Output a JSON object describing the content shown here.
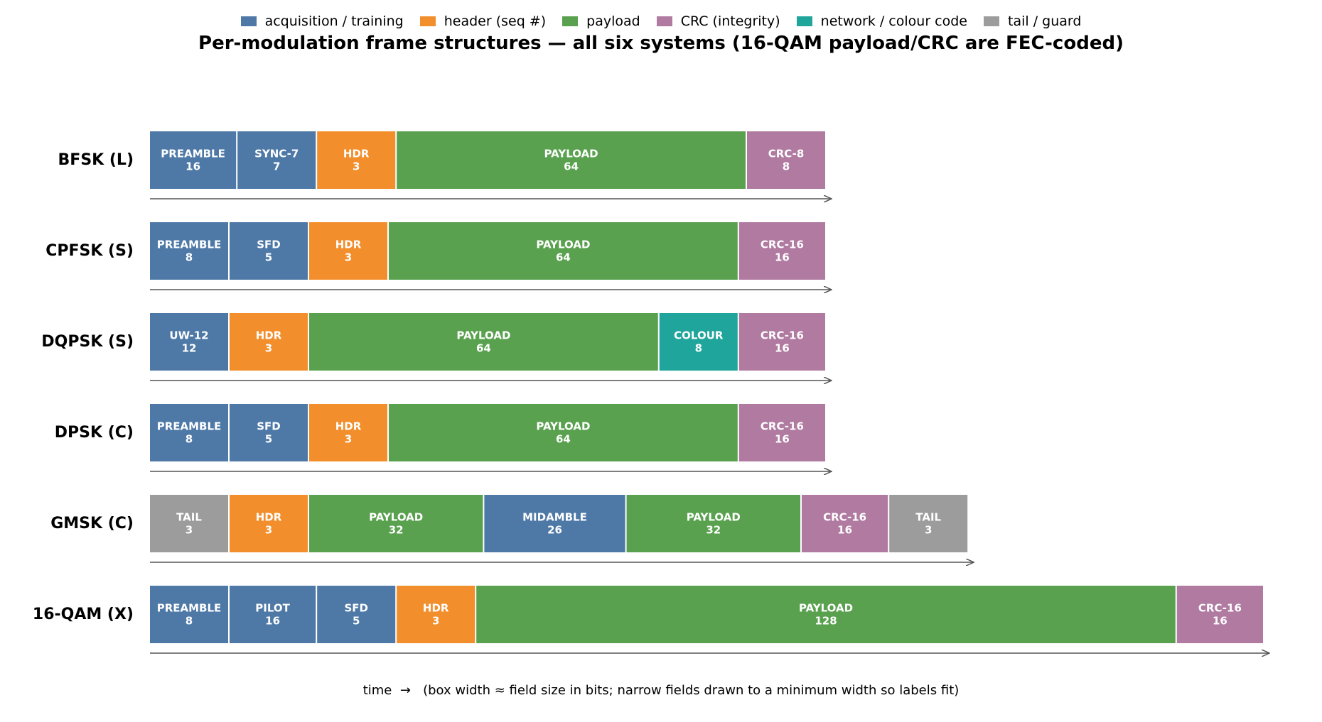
{
  "title": "Per-modulation frame structures — all six systems (16-QAM payload/CRC are FEC-coded)",
  "caption": "time  →   (box width ≈ field size in bits; narrow fields drawn to a minimum width so labels fit)",
  "legend": [
    {
      "label": "acquisition / training",
      "color": "#4e79a7"
    },
    {
      "label": "header (seq #)",
      "color": "#f28e2b"
    },
    {
      "label": "payload",
      "color": "#59a14f"
    },
    {
      "label": "CRC (integrity)",
      "color": "#b07aa1"
    },
    {
      "label": "network / colour code",
      "color": "#1fa59b"
    },
    {
      "label": "tail / guard",
      "color": "#9c9c9c"
    }
  ],
  "category_colors": {
    "acq": "#4e79a7",
    "hdr": "#f28e2b",
    "payload": "#59a14f",
    "crc": "#b07aa1",
    "net": "#1fa59b",
    "tail": "#9c9c9c"
  },
  "chart_data": {
    "type": "diagram",
    "title": "Per-modulation frame structures — all six systems (16-QAM payload/CRC are FEC-coded)",
    "systems": [
      {
        "name": "BFSK (L)",
        "fields": [
          {
            "label": "PREAMBLE",
            "bits": 16,
            "category": "acq"
          },
          {
            "label": "SYNC-7",
            "bits": 7,
            "category": "acq"
          },
          {
            "label": "HDR",
            "bits": 3,
            "category": "hdr"
          },
          {
            "label": "PAYLOAD",
            "bits": 64,
            "category": "payload"
          },
          {
            "label": "CRC-8",
            "bits": 8,
            "category": "crc"
          }
        ]
      },
      {
        "name": "CPFSK (S)",
        "fields": [
          {
            "label": "PREAMBLE",
            "bits": 8,
            "category": "acq"
          },
          {
            "label": "SFD",
            "bits": 5,
            "category": "acq"
          },
          {
            "label": "HDR",
            "bits": 3,
            "category": "hdr"
          },
          {
            "label": "PAYLOAD",
            "bits": 64,
            "category": "payload"
          },
          {
            "label": "CRC-16",
            "bits": 16,
            "category": "crc"
          }
        ]
      },
      {
        "name": "DQPSK (S)",
        "fields": [
          {
            "label": "UW-12",
            "bits": 12,
            "category": "acq"
          },
          {
            "label": "HDR",
            "bits": 3,
            "category": "hdr"
          },
          {
            "label": "PAYLOAD",
            "bits": 64,
            "category": "payload"
          },
          {
            "label": "COLOUR",
            "bits": 8,
            "category": "net"
          },
          {
            "label": "CRC-16",
            "bits": 16,
            "category": "crc"
          }
        ]
      },
      {
        "name": "DPSK (C)",
        "fields": [
          {
            "label": "PREAMBLE",
            "bits": 8,
            "category": "acq"
          },
          {
            "label": "SFD",
            "bits": 5,
            "category": "acq"
          },
          {
            "label": "HDR",
            "bits": 3,
            "category": "hdr"
          },
          {
            "label": "PAYLOAD",
            "bits": 64,
            "category": "payload"
          },
          {
            "label": "CRC-16",
            "bits": 16,
            "category": "crc"
          }
        ]
      },
      {
        "name": "GMSK (C)",
        "fields": [
          {
            "label": "TAIL",
            "bits": 3,
            "category": "tail"
          },
          {
            "label": "HDR",
            "bits": 3,
            "category": "hdr"
          },
          {
            "label": "PAYLOAD",
            "bits": 32,
            "category": "payload"
          },
          {
            "label": "MIDAMBLE",
            "bits": 26,
            "category": "acq"
          },
          {
            "label": "PAYLOAD",
            "bits": 32,
            "category": "payload"
          },
          {
            "label": "CRC-16",
            "bits": 16,
            "category": "crc"
          },
          {
            "label": "TAIL",
            "bits": 3,
            "category": "tail"
          }
        ]
      },
      {
        "name": "16-QAM (X)",
        "fields": [
          {
            "label": "PREAMBLE",
            "bits": 8,
            "category": "acq"
          },
          {
            "label": "PILOT",
            "bits": 16,
            "category": "acq"
          },
          {
            "label": "SFD",
            "bits": 5,
            "category": "acq"
          },
          {
            "label": "HDR",
            "bits": 3,
            "category": "hdr"
          },
          {
            "label": "PAYLOAD",
            "bits": 128,
            "category": "payload"
          },
          {
            "label": "CRC-16",
            "bits": 16,
            "category": "crc"
          }
        ]
      }
    ]
  }
}
